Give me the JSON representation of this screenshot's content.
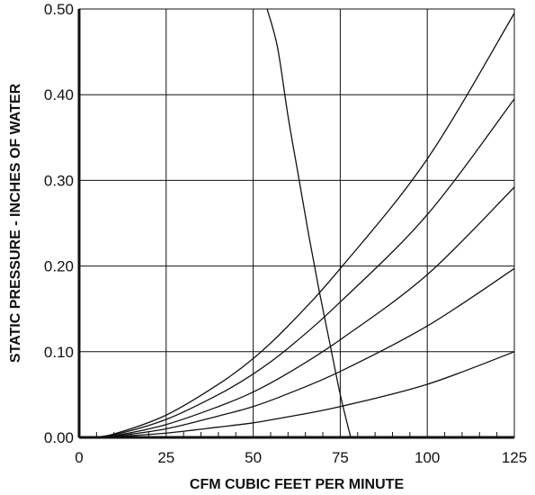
{
  "chart_data": {
    "type": "line",
    "title": "",
    "xlabel": "CFM CUBIC FEET PER MINUTE",
    "ylabel": "STATIC PRESSURE - INCHES OF WATER",
    "xlim": [
      0,
      125
    ],
    "ylim": [
      0,
      0.5
    ],
    "x_ticks": [
      "0",
      "25",
      "50",
      "75",
      "100",
      "125"
    ],
    "y_ticks": [
      "0.00",
      "0.10",
      "0.20",
      "0.30",
      "0.40",
      "0.50"
    ],
    "grid": true,
    "legend": "none",
    "series": [
      {
        "x": [
          54,
          57,
          60,
          63,
          66,
          69,
          72,
          75,
          78
        ],
        "values": [
          0.5,
          0.455,
          0.375,
          0.305,
          0.235,
          0.17,
          0.11,
          0.05,
          0.0
        ]
      },
      {
        "x": [
          3,
          10,
          25,
          40,
          50,
          60,
          75,
          100,
          125
        ],
        "values": [
          0.0,
          0.004,
          0.026,
          0.062,
          0.092,
          0.13,
          0.197,
          0.325,
          0.495
        ]
      },
      {
        "x": [
          3,
          10,
          25,
          40,
          50,
          60,
          75,
          100,
          125
        ],
        "values": [
          0.0,
          0.003,
          0.021,
          0.05,
          0.074,
          0.104,
          0.158,
          0.26,
          0.395
        ]
      },
      {
        "x": [
          3,
          10,
          25,
          40,
          50,
          60,
          75,
          100,
          125
        ],
        "values": [
          0.0,
          0.002,
          0.015,
          0.036,
          0.053,
          0.075,
          0.114,
          0.19,
          0.292
        ]
      },
      {
        "x": [
          3,
          10,
          25,
          40,
          50,
          60,
          75,
          100,
          125
        ],
        "values": [
          0.0,
          0.0015,
          0.01,
          0.025,
          0.036,
          0.051,
          0.077,
          0.13,
          0.197
        ]
      },
      {
        "x": [
          3,
          10,
          25,
          40,
          50,
          60,
          75,
          100,
          125
        ],
        "values": [
          0.0,
          0.001,
          0.005,
          0.012,
          0.017,
          0.024,
          0.036,
          0.062,
          0.1
        ]
      }
    ]
  }
}
